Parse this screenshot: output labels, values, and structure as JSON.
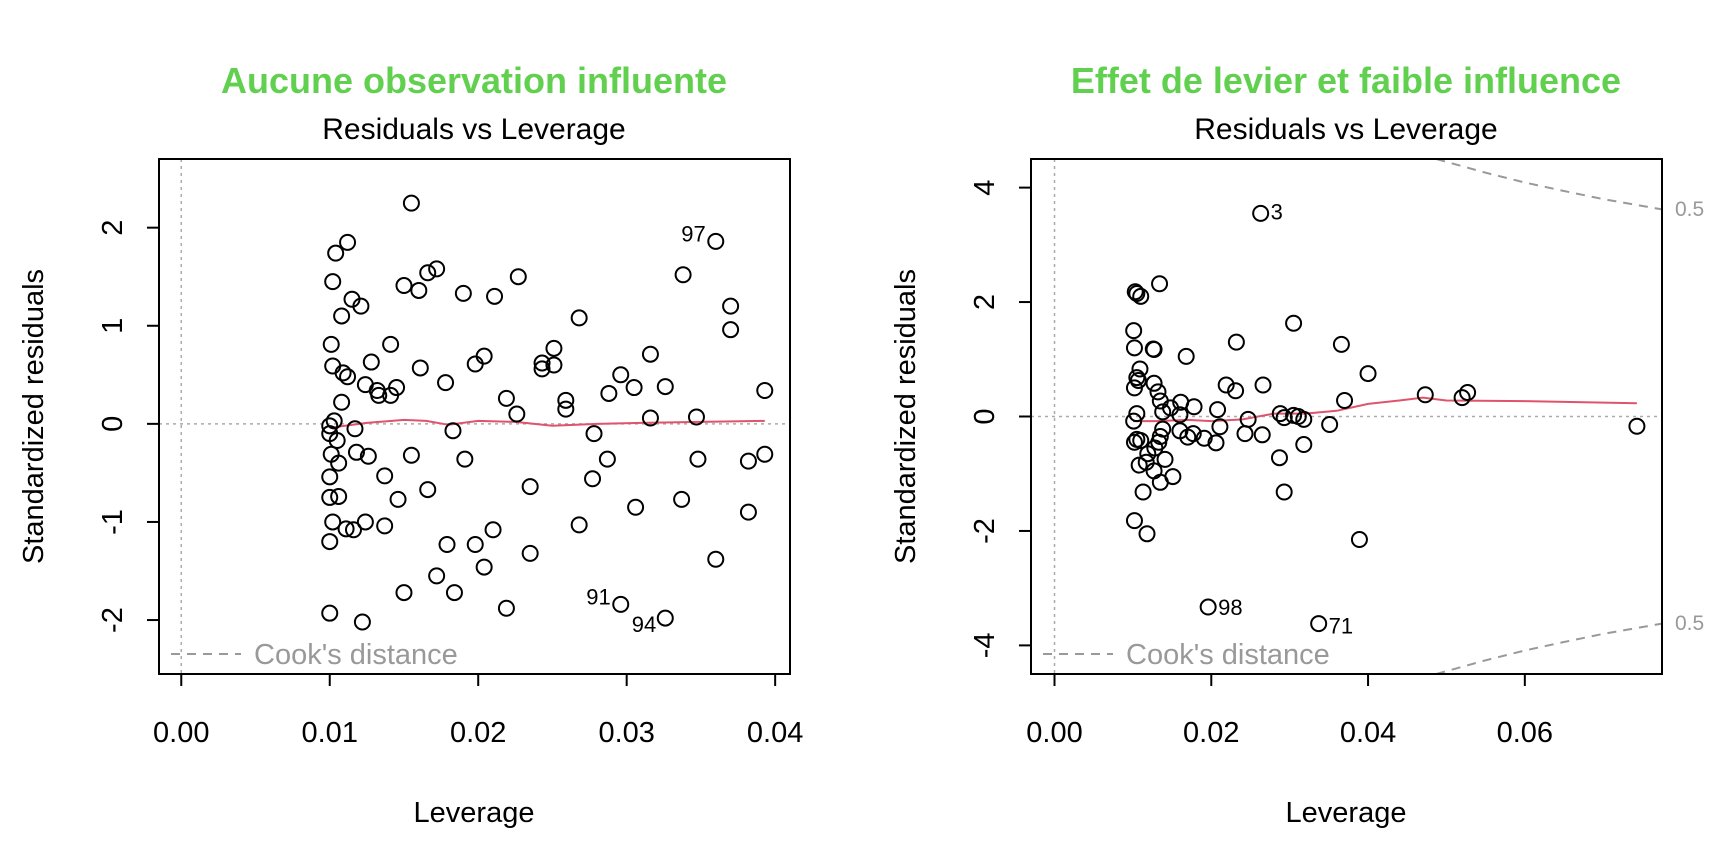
{
  "chart_data": [
    {
      "type": "scatter",
      "main_title": "Aucune observation influente",
      "title": "Residuals vs Leverage",
      "xlabel": "Leverage",
      "ylabel": "Standardized residuals",
      "xlim": [
        -0.0015,
        0.041
      ],
      "ylim": [
        -2.55,
        2.7
      ],
      "xticks": [
        0.0,
        0.01,
        0.02,
        0.03,
        0.04
      ],
      "xtick_labels": [
        "0.00",
        "0.01",
        "0.02",
        "0.03",
        "0.04"
      ],
      "yticks": [
        -2,
        -1,
        0,
        1,
        2
      ],
      "ytick_labels": [
        "-2",
        "-1",
        "0",
        "1",
        "2"
      ],
      "legend": "Cook's distance",
      "legend_position": "bottom-left",
      "grid": false,
      "points": [
        {
          "x": 0.0155,
          "y": 2.25
        },
        {
          "x": 0.0112,
          "y": 1.85
        },
        {
          "x": 0.0104,
          "y": 1.74
        },
        {
          "x": 0.0172,
          "y": 1.58
        },
        {
          "x": 0.0166,
          "y": 1.54
        },
        {
          "x": 0.0338,
          "y": 1.52
        },
        {
          "x": 0.0227,
          "y": 1.5
        },
        {
          "x": 0.0102,
          "y": 1.45
        },
        {
          "x": 0.015,
          "y": 1.41
        },
        {
          "x": 0.016,
          "y": 1.36
        },
        {
          "x": 0.019,
          "y": 1.33
        },
        {
          "x": 0.0211,
          "y": 1.3
        },
        {
          "x": 0.0115,
          "y": 1.27
        },
        {
          "x": 0.0121,
          "y": 1.2
        },
        {
          "x": 0.037,
          "y": 1.2
        },
        {
          "x": 0.0108,
          "y": 1.1
        },
        {
          "x": 0.0268,
          "y": 1.08
        },
        {
          "x": 0.037,
          "y": 0.96
        },
        {
          "x": 0.0101,
          "y": 0.81
        },
        {
          "x": 0.0141,
          "y": 0.81
        },
        {
          "x": 0.0251,
          "y": 0.77
        },
        {
          "x": 0.0316,
          "y": 0.71
        },
        {
          "x": 0.0204,
          "y": 0.69
        },
        {
          "x": 0.0128,
          "y": 0.63
        },
        {
          "x": 0.0198,
          "y": 0.61
        },
        {
          "x": 0.0243,
          "y": 0.62
        },
        {
          "x": 0.0251,
          "y": 0.6
        },
        {
          "x": 0.0102,
          "y": 0.59
        },
        {
          "x": 0.0161,
          "y": 0.57
        },
        {
          "x": 0.0243,
          "y": 0.56
        },
        {
          "x": 0.0109,
          "y": 0.52
        },
        {
          "x": 0.0112,
          "y": 0.48
        },
        {
          "x": 0.0296,
          "y": 0.5
        },
        {
          "x": 0.0178,
          "y": 0.42
        },
        {
          "x": 0.0124,
          "y": 0.4
        },
        {
          "x": 0.0326,
          "y": 0.38
        },
        {
          "x": 0.0145,
          "y": 0.37
        },
        {
          "x": 0.0305,
          "y": 0.37
        },
        {
          "x": 0.0132,
          "y": 0.34
        },
        {
          "x": 0.0393,
          "y": 0.34
        },
        {
          "x": 0.0288,
          "y": 0.31
        },
        {
          "x": 0.0133,
          "y": 0.29
        },
        {
          "x": 0.0141,
          "y": 0.29
        },
        {
          "x": 0.0219,
          "y": 0.26
        },
        {
          "x": 0.0259,
          "y": 0.24
        },
        {
          "x": 0.0108,
          "y": 0.22
        },
        {
          "x": 0.0259,
          "y": 0.15
        },
        {
          "x": 0.0226,
          "y": 0.1
        },
        {
          "x": 0.0316,
          "y": 0.06
        },
        {
          "x": 0.0347,
          "y": 0.07
        },
        {
          "x": 0.0103,
          "y": 0.03
        },
        {
          "x": 0.01,
          "y": -0.02
        },
        {
          "x": 0.0183,
          "y": -0.07
        },
        {
          "x": 0.0117,
          "y": -0.05
        },
        {
          "x": 0.01,
          "y": -0.1
        },
        {
          "x": 0.0278,
          "y": -0.1
        },
        {
          "x": 0.0105,
          "y": -0.17
        },
        {
          "x": 0.0101,
          "y": -0.31
        },
        {
          "x": 0.0118,
          "y": -0.29
        },
        {
          "x": 0.0126,
          "y": -0.33
        },
        {
          "x": 0.0155,
          "y": -0.32
        },
        {
          "x": 0.0191,
          "y": -0.36
        },
        {
          "x": 0.0287,
          "y": -0.36
        },
        {
          "x": 0.0348,
          "y": -0.36
        },
        {
          "x": 0.0382,
          "y": -0.38
        },
        {
          "x": 0.0393,
          "y": -0.31
        },
        {
          "x": 0.0106,
          "y": -0.4
        },
        {
          "x": 0.0137,
          "y": -0.53
        },
        {
          "x": 0.01,
          "y": -0.54
        },
        {
          "x": 0.0277,
          "y": -0.56
        },
        {
          "x": 0.0235,
          "y": -0.64
        },
        {
          "x": 0.0166,
          "y": -0.67
        },
        {
          "x": 0.01,
          "y": -0.75
        },
        {
          "x": 0.0106,
          "y": -0.74
        },
        {
          "x": 0.0146,
          "y": -0.77
        },
        {
          "x": 0.0337,
          "y": -0.77
        },
        {
          "x": 0.0306,
          "y": -0.85
        },
        {
          "x": 0.0382,
          "y": -0.9
        },
        {
          "x": 0.0102,
          "y": -1.0
        },
        {
          "x": 0.0124,
          "y": -1.0
        },
        {
          "x": 0.0268,
          "y": -1.03
        },
        {
          "x": 0.0137,
          "y": -1.04
        },
        {
          "x": 0.0111,
          "y": -1.07
        },
        {
          "x": 0.0116,
          "y": -1.08
        },
        {
          "x": 0.021,
          "y": -1.08
        },
        {
          "x": 0.01,
          "y": -1.2
        },
        {
          "x": 0.0179,
          "y": -1.23
        },
        {
          "x": 0.0198,
          "y": -1.23
        },
        {
          "x": 0.0235,
          "y": -1.32
        },
        {
          "x": 0.036,
          "y": -1.38
        },
        {
          "x": 0.0204,
          "y": -1.46
        },
        {
          "x": 0.0172,
          "y": -1.55
        },
        {
          "x": 0.015,
          "y": -1.72
        },
        {
          "x": 0.0184,
          "y": -1.72
        },
        {
          "x": 0.0219,
          "y": -1.88
        },
        {
          "x": 0.01,
          "y": -1.93
        },
        {
          "x": 0.0122,
          "y": -2.02
        },
        {
          "x": 0.036,
          "y": 1.86,
          "label": "97"
        },
        {
          "x": 0.0296,
          "y": -1.84,
          "label": "91"
        },
        {
          "x": 0.0326,
          "y": -1.98,
          "label": "94"
        }
      ],
      "smooth_line": {
        "color": "#DF536B",
        "x": [
          0.01,
          0.0125,
          0.015,
          0.0165,
          0.018,
          0.02,
          0.0225,
          0.025,
          0.028,
          0.031,
          0.035,
          0.0393
        ],
        "y": [
          -0.04,
          0.01,
          0.04,
          0.03,
          -0.01,
          0.03,
          0.02,
          -0.02,
          0.0,
          0.01,
          0.02,
          0.03
        ]
      }
    },
    {
      "type": "scatter",
      "main_title": "Effet de levier et faible influence",
      "title": "Residuals vs Leverage",
      "xlabel": "Leverage",
      "ylabel": "Standardized residuals",
      "xlim": [
        -0.003,
        0.0775
      ],
      "ylim": [
        -4.5,
        4.5
      ],
      "xticks": [
        0.0,
        0.02,
        0.04,
        0.06
      ],
      "xtick_labels": [
        "0.00",
        "0.02",
        "0.04",
        "0.06"
      ],
      "yticks": [
        -4,
        -2,
        0,
        2,
        4
      ],
      "ytick_labels": [
        "-4",
        "-2",
        "0",
        "2",
        "4"
      ],
      "legend": "Cook's distance",
      "legend_position": "bottom-left",
      "grid": false,
      "cook_contour_labels": [
        "0.5",
        "0.5"
      ],
      "cook_contours": [
        {
          "sign": 1,
          "x": [
            0.0487,
            0.055,
            0.06,
            0.065,
            0.07,
            0.0775
          ],
          "y": [
            4.5,
            4.26,
            4.09,
            3.94,
            3.8,
            3.62
          ]
        },
        {
          "sign": -1,
          "x": [
            0.0487,
            0.055,
            0.06,
            0.065,
            0.07,
            0.0775
          ],
          "y": [
            -4.5,
            -4.26,
            -4.09,
            -3.94,
            -3.8,
            -3.62
          ]
        }
      ],
      "points": [
        {
          "x": 0.0263,
          "y": 3.55,
          "label": "3"
        },
        {
          "x": 0.0196,
          "y": -3.33,
          "label": "98"
        },
        {
          "x": 0.0337,
          "y": -3.62,
          "label": "71"
        },
        {
          "x": 0.0103,
          "y": 2.18
        },
        {
          "x": 0.0105,
          "y": 2.15
        },
        {
          "x": 0.011,
          "y": 2.1
        },
        {
          "x": 0.0134,
          "y": 2.32
        },
        {
          "x": 0.0101,
          "y": 1.5
        },
        {
          "x": 0.0305,
          "y": 1.63
        },
        {
          "x": 0.0366,
          "y": 1.26
        },
        {
          "x": 0.0232,
          "y": 1.3
        },
        {
          "x": 0.0102,
          "y": 1.2
        },
        {
          "x": 0.0126,
          "y": 1.18
        },
        {
          "x": 0.0127,
          "y": 1.17
        },
        {
          "x": 0.0168,
          "y": 1.05
        },
        {
          "x": 0.0109,
          "y": 0.83
        },
        {
          "x": 0.04,
          "y": 0.75
        },
        {
          "x": 0.0105,
          "y": 0.68
        },
        {
          "x": 0.0107,
          "y": 0.63
        },
        {
          "x": 0.0127,
          "y": 0.58
        },
        {
          "x": 0.0219,
          "y": 0.55
        },
        {
          "x": 0.0266,
          "y": 0.55
        },
        {
          "x": 0.0102,
          "y": 0.5
        },
        {
          "x": 0.0132,
          "y": 0.43
        },
        {
          "x": 0.0231,
          "y": 0.45
        },
        {
          "x": 0.0473,
          "y": 0.38
        },
        {
          "x": 0.0527,
          "y": 0.42
        },
        {
          "x": 0.052,
          "y": 0.33
        },
        {
          "x": 0.037,
          "y": 0.28
        },
        {
          "x": 0.0135,
          "y": 0.27
        },
        {
          "x": 0.0161,
          "y": 0.25
        },
        {
          "x": 0.0178,
          "y": 0.17
        },
        {
          "x": 0.0148,
          "y": 0.15
        },
        {
          "x": 0.0208,
          "y": 0.12
        },
        {
          "x": 0.0138,
          "y": 0.08
        },
        {
          "x": 0.0105,
          "y": 0.05
        },
        {
          "x": 0.016,
          "y": 0.03
        },
        {
          "x": 0.0288,
          "y": 0.05
        },
        {
          "x": 0.0305,
          "y": 0.02
        },
        {
          "x": 0.0293,
          "y": -0.02
        },
        {
          "x": 0.0311,
          "y": 0.0
        },
        {
          "x": 0.0318,
          "y": -0.05
        },
        {
          "x": 0.0247,
          "y": -0.05
        },
        {
          "x": 0.0101,
          "y": -0.08
        },
        {
          "x": 0.0351,
          "y": -0.14
        },
        {
          "x": 0.0743,
          "y": -0.17
        },
        {
          "x": 0.0211,
          "y": -0.18
        },
        {
          "x": 0.0138,
          "y": -0.22
        },
        {
          "x": 0.016,
          "y": -0.25
        },
        {
          "x": 0.0177,
          "y": -0.3
        },
        {
          "x": 0.0243,
          "y": -0.3
        },
        {
          "x": 0.0265,
          "y": -0.32
        },
        {
          "x": 0.0135,
          "y": -0.35
        },
        {
          "x": 0.017,
          "y": -0.36
        },
        {
          "x": 0.0191,
          "y": -0.38
        },
        {
          "x": 0.0105,
          "y": -0.4
        },
        {
          "x": 0.011,
          "y": -0.42
        },
        {
          "x": 0.0102,
          "y": -0.45
        },
        {
          "x": 0.0133,
          "y": -0.45
        },
        {
          "x": 0.0206,
          "y": -0.46
        },
        {
          "x": 0.0318,
          "y": -0.49
        },
        {
          "x": 0.0128,
          "y": -0.55
        },
        {
          "x": 0.0119,
          "y": -0.65
        },
        {
          "x": 0.0141,
          "y": -0.75
        },
        {
          "x": 0.0117,
          "y": -0.8
        },
        {
          "x": 0.0287,
          "y": -0.72
        },
        {
          "x": 0.0108,
          "y": -0.85
        },
        {
          "x": 0.0127,
          "y": -0.95
        },
        {
          "x": 0.0151,
          "y": -1.05
        },
        {
          "x": 0.0135,
          "y": -1.15
        },
        {
          "x": 0.0113,
          "y": -1.32
        },
        {
          "x": 0.0293,
          "y": -1.32
        },
        {
          "x": 0.0102,
          "y": -1.82
        },
        {
          "x": 0.0118,
          "y": -2.05
        },
        {
          "x": 0.0389,
          "y": -2.15
        }
      ],
      "smooth_line": {
        "color": "#DF536B",
        "x": [
          0.01,
          0.013,
          0.017,
          0.02,
          0.024,
          0.028,
          0.032,
          0.036,
          0.04,
          0.044,
          0.047,
          0.05,
          0.06,
          0.0743
        ],
        "y": [
          -0.08,
          -0.08,
          -0.06,
          -0.08,
          -0.05,
          0.05,
          0.05,
          0.1,
          0.22,
          0.28,
          0.33,
          0.28,
          0.27,
          0.23
        ]
      }
    }
  ],
  "colors": {
    "main_title": "#61D04F",
    "points": "#000000",
    "smooth": "#DF536B",
    "reference": "#9E9E9E",
    "axis": "#000000"
  }
}
